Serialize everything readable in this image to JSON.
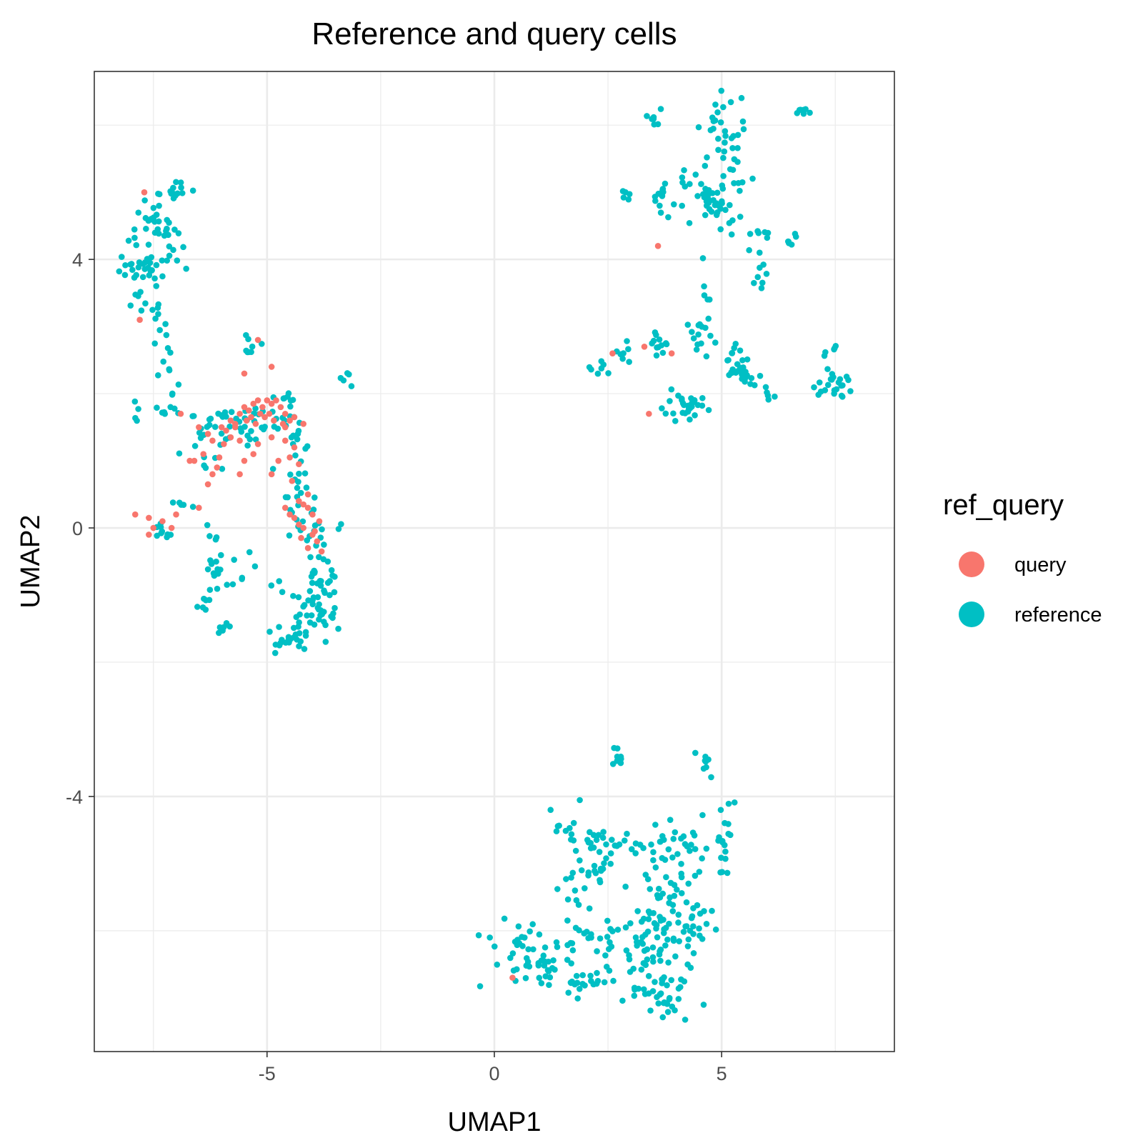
{
  "chart_data": {
    "type": "scatter",
    "title": "Reference and query cells",
    "xlabel": "UMAP1",
    "ylabel": "UMAP2",
    "xlim": [
      -8.8,
      8.8
    ],
    "ylim": [
      -7.8,
      6.8
    ],
    "x_major_ticks": [
      -5,
      0,
      5
    ],
    "x_minor_ticks": [
      -7.5,
      -2.5,
      2.5,
      7.5
    ],
    "y_major_ticks": [
      -4,
      0,
      4
    ],
    "y_minor_ticks": [
      -6,
      -2,
      2,
      6
    ],
    "x_tick_labels": [
      "-5",
      "0",
      "5"
    ],
    "y_tick_labels": [
      "-4",
      "0",
      "4"
    ],
    "grid": true,
    "legend": {
      "title": "ref_query",
      "position": "right",
      "entries": [
        {
          "label": "query",
          "color": "#F8766D"
        },
        {
          "label": "reference",
          "color": "#00BFC4"
        }
      ]
    },
    "series": [
      {
        "name": "query",
        "color": "#F8766D",
        "points": [
          [
            -7.7,
            5.0
          ],
          [
            -7.8,
            3.1
          ],
          [
            -7.9,
            0.2
          ],
          [
            -7.6,
            0.15
          ],
          [
            -7.5,
            0.0
          ],
          [
            -7.6,
            -0.1
          ],
          [
            -6.9,
            1.7
          ],
          [
            -6.5,
            1.5
          ],
          [
            -6.3,
            1.4
          ],
          [
            -6.2,
            1.3
          ],
          [
            -6.0,
            1.5
          ],
          [
            -5.8,
            1.6
          ],
          [
            -5.6,
            1.7
          ],
          [
            -5.5,
            1.8
          ],
          [
            -5.4,
            1.75
          ],
          [
            -5.3,
            1.85
          ],
          [
            -5.2,
            1.9
          ],
          [
            -5.1,
            1.8
          ],
          [
            -5.0,
            1.9
          ],
          [
            -4.9,
            1.85
          ],
          [
            -4.8,
            1.9
          ],
          [
            -4.7,
            1.8
          ],
          [
            -4.6,
            1.7
          ],
          [
            -4.5,
            1.6
          ],
          [
            -5.9,
            1.45
          ],
          [
            -5.7,
            1.5
          ],
          [
            -5.45,
            1.6
          ],
          [
            -5.25,
            1.55
          ],
          [
            -5.05,
            1.65
          ],
          [
            -4.85,
            1.6
          ],
          [
            -5.6,
            1.3
          ],
          [
            -5.2,
            1.25
          ],
          [
            -4.9,
            1.35
          ],
          [
            -4.6,
            1.3
          ],
          [
            -4.4,
            1.2
          ],
          [
            -5.7,
            1.55
          ],
          [
            -6.4,
            1.1
          ],
          [
            -6.6,
            1.0
          ],
          [
            -6.1,
            0.9
          ],
          [
            -6.2,
            0.8
          ],
          [
            -5.5,
            1.0
          ],
          [
            -5.3,
            1.1
          ],
          [
            -4.75,
            1.0
          ],
          [
            -4.5,
            1.05
          ],
          [
            -4.3,
            0.95
          ],
          [
            -6.3,
            0.65
          ],
          [
            -5.6,
            0.8
          ],
          [
            -4.9,
            0.8
          ],
          [
            -4.3,
            0.4
          ],
          [
            -4.2,
            0.35
          ],
          [
            -4.1,
            0.3
          ],
          [
            -4.0,
            0.2
          ],
          [
            -4.4,
            0.15
          ],
          [
            -4.3,
            0.05
          ],
          [
            -4.0,
            -0.1
          ],
          [
            -3.9,
            -0.2
          ],
          [
            -4.1,
            -0.3
          ],
          [
            -3.8,
            -0.35
          ],
          [
            -4.2,
            0.0
          ],
          [
            -3.85,
            0.1
          ],
          [
            -4.6,
            0.3
          ],
          [
            -4.5,
            0.2
          ],
          [
            -5.2,
            2.8
          ],
          [
            -4.9,
            2.4
          ],
          [
            -5.5,
            2.3
          ],
          [
            -4.6,
            1.5
          ],
          [
            -4.4,
            1.65
          ],
          [
            -4.2,
            1.55
          ],
          [
            -6.5,
            0.3
          ],
          [
            -7.0,
            0.2
          ],
          [
            -7.3,
            0.1
          ],
          [
            -7.1,
            0.0
          ],
          [
            3.3,
            2.7
          ],
          [
            3.9,
            2.6
          ],
          [
            2.6,
            2.6
          ],
          [
            3.4,
            1.7
          ],
          [
            3.6,
            4.2
          ],
          [
            0.4,
            -6.7
          ],
          [
            -6.7,
            1.0
          ],
          [
            -4.95,
            1.7
          ],
          [
            -5.15,
            1.7
          ],
          [
            -5.35,
            1.65
          ],
          [
            -4.65,
            1.55
          ],
          [
            -5.8,
            1.35
          ],
          [
            -5.95,
            1.25
          ],
          [
            -6.05,
            1.05
          ],
          [
            -4.45,
            0.7
          ],
          [
            -4.1,
            0.5
          ],
          [
            -3.95,
            -0.05
          ],
          [
            -4.25,
            -0.15
          ]
        ]
      },
      {
        "name": "reference",
        "color": "#00BFC4",
        "clusters": [
          {
            "cx": -7.6,
            "cy": 4.55,
            "sx": 0.18,
            "sy": 0.2,
            "n": 18
          },
          {
            "cx": -7.3,
            "cy": 4.25,
            "sx": 0.2,
            "sy": 0.2,
            "n": 16
          },
          {
            "cx": -7.8,
            "cy": 3.7,
            "sx": 0.2,
            "sy": 0.25,
            "n": 26
          },
          {
            "cx": -7.4,
            "cy": 3.5,
            "sx": 0.15,
            "sy": 0.35,
            "n": 14
          },
          {
            "cx": -6.9,
            "cy": 5.05,
            "sx": 0.2,
            "sy": 0.1,
            "n": 14
          },
          {
            "cx": -7.2,
            "cy": 2.5,
            "sx": 0.15,
            "sy": 0.5,
            "n": 12
          },
          {
            "cx": -7.0,
            "cy": 1.8,
            "sx": 0.2,
            "sy": 0.1,
            "n": 8
          },
          {
            "cx": -7.9,
            "cy": 1.7,
            "sx": 0.05,
            "sy": 0.08,
            "n": 4
          },
          {
            "cx": -5.3,
            "cy": 2.7,
            "sx": 0.12,
            "sy": 0.1,
            "n": 8
          },
          {
            "cx": -3.2,
            "cy": 2.2,
            "sx": 0.08,
            "sy": 0.05,
            "n": 5
          },
          {
            "cx": -5.8,
            "cy": 1.55,
            "sx": 0.35,
            "sy": 0.12,
            "n": 22
          },
          {
            "cx": -5.0,
            "cy": 1.6,
            "sx": 0.35,
            "sy": 0.15,
            "n": 24
          },
          {
            "cx": -4.5,
            "cy": 1.4,
            "sx": 0.2,
            "sy": 0.25,
            "n": 14
          },
          {
            "cx": -6.4,
            "cy": 1.2,
            "sx": 0.2,
            "sy": 0.25,
            "n": 14
          },
          {
            "cx": -4.4,
            "cy": 0.8,
            "sx": 0.15,
            "sy": 0.3,
            "n": 14
          },
          {
            "cx": -4.2,
            "cy": 0.2,
            "sx": 0.2,
            "sy": 0.25,
            "n": 18
          },
          {
            "cx": -3.8,
            "cy": -0.4,
            "sx": 0.15,
            "sy": 0.3,
            "n": 20
          },
          {
            "cx": -3.7,
            "cy": -1.0,
            "sx": 0.15,
            "sy": 0.3,
            "n": 22
          },
          {
            "cx": -4.2,
            "cy": -1.3,
            "sx": 0.25,
            "sy": 0.25,
            "n": 28
          },
          {
            "cx": -4.4,
            "cy": -1.7,
            "sx": 0.25,
            "sy": 0.1,
            "n": 18
          },
          {
            "cx": -6.2,
            "cy": -0.5,
            "sx": 0.12,
            "sy": 0.3,
            "n": 14
          },
          {
            "cx": -6.3,
            "cy": -1.0,
            "sx": 0.15,
            "sy": 0.1,
            "n": 8
          },
          {
            "cx": -5.5,
            "cy": -0.7,
            "sx": 0.3,
            "sy": 0.15,
            "n": 9
          },
          {
            "cx": -6.0,
            "cy": -1.45,
            "sx": 0.08,
            "sy": 0.08,
            "n": 6
          },
          {
            "cx": -7.3,
            "cy": 0.0,
            "sx": 0.12,
            "sy": 0.1,
            "n": 10
          },
          {
            "cx": -6.9,
            "cy": 0.35,
            "sx": 0.15,
            "sy": 0.08,
            "n": 5
          },
          {
            "cx": 3.6,
            "cy": 6.1,
            "sx": 0.08,
            "sy": 0.1,
            "n": 7
          },
          {
            "cx": 5.0,
            "cy": 6.0,
            "sx": 0.2,
            "sy": 0.2,
            "n": 22
          },
          {
            "cx": 5.2,
            "cy": 5.5,
            "sx": 0.2,
            "sy": 0.3,
            "n": 18
          },
          {
            "cx": 6.8,
            "cy": 6.2,
            "sx": 0.12,
            "sy": 0.05,
            "n": 8
          },
          {
            "cx": 4.6,
            "cy": 5.0,
            "sx": 0.3,
            "sy": 0.2,
            "n": 24
          },
          {
            "cx": 3.8,
            "cy": 4.9,
            "sx": 0.3,
            "sy": 0.15,
            "n": 16
          },
          {
            "cx": 5.0,
            "cy": 4.7,
            "sx": 0.25,
            "sy": 0.15,
            "n": 18
          },
          {
            "cx": 2.9,
            "cy": 5.0,
            "sx": 0.1,
            "sy": 0.05,
            "n": 5
          },
          {
            "cx": 5.8,
            "cy": 4.3,
            "sx": 0.15,
            "sy": 0.1,
            "n": 8
          },
          {
            "cx": 6.5,
            "cy": 4.3,
            "sx": 0.12,
            "sy": 0.05,
            "n": 6
          },
          {
            "cx": 5.9,
            "cy": 3.8,
            "sx": 0.1,
            "sy": 0.1,
            "n": 7
          },
          {
            "cx": 4.4,
            "cy": 2.9,
            "sx": 0.15,
            "sy": 0.15,
            "n": 12
          },
          {
            "cx": 3.6,
            "cy": 2.7,
            "sx": 0.25,
            "sy": 0.1,
            "n": 12
          },
          {
            "cx": 2.8,
            "cy": 2.6,
            "sx": 0.1,
            "sy": 0.1,
            "n": 7
          },
          {
            "cx": 2.3,
            "cy": 2.45,
            "sx": 0.1,
            "sy": 0.08,
            "n": 7
          },
          {
            "cx": 5.4,
            "cy": 2.3,
            "sx": 0.2,
            "sy": 0.1,
            "n": 22
          },
          {
            "cx": 5.3,
            "cy": 2.55,
            "sx": 0.1,
            "sy": 0.12,
            "n": 10
          },
          {
            "cx": 6.1,
            "cy": 2.0,
            "sx": 0.1,
            "sy": 0.05,
            "n": 5
          },
          {
            "cx": 7.5,
            "cy": 2.1,
            "sx": 0.25,
            "sy": 0.1,
            "n": 22
          },
          {
            "cx": 7.3,
            "cy": 2.6,
            "sx": 0.1,
            "sy": 0.12,
            "n": 6
          },
          {
            "cx": 4.2,
            "cy": 1.8,
            "sx": 0.25,
            "sy": 0.1,
            "n": 30
          },
          {
            "cx": 4.7,
            "cy": 3.4,
            "sx": 0.15,
            "sy": 0.3,
            "n": 8
          },
          {
            "cx": 2.7,
            "cy": -3.45,
            "sx": 0.05,
            "sy": 0.1,
            "n": 8
          },
          {
            "cx": 4.6,
            "cy": -3.5,
            "sx": 0.1,
            "sy": 0.1,
            "n": 8
          },
          {
            "cx": 5.1,
            "cy": -4.6,
            "sx": 0.1,
            "sy": 0.3,
            "n": 18
          },
          {
            "cx": 1.6,
            "cy": -4.6,
            "sx": 0.2,
            "sy": 0.25,
            "n": 14
          },
          {
            "cx": 2.5,
            "cy": -4.7,
            "sx": 0.3,
            "sy": 0.1,
            "n": 22
          },
          {
            "cx": 3.7,
            "cy": -4.8,
            "sx": 0.3,
            "sy": 0.25,
            "n": 22
          },
          {
            "cx": 4.4,
            "cy": -4.9,
            "sx": 0.25,
            "sy": 0.35,
            "n": 16
          },
          {
            "cx": 1.8,
            "cy": -5.4,
            "sx": 0.2,
            "sy": 0.3,
            "n": 18
          },
          {
            "cx": 2.3,
            "cy": -5.0,
            "sx": 0.15,
            "sy": 0.3,
            "n": 10
          },
          {
            "cx": 3.6,
            "cy": -5.6,
            "sx": 0.25,
            "sy": 0.25,
            "n": 24
          },
          {
            "cx": 4.1,
            "cy": -5.9,
            "sx": 0.35,
            "sy": 0.2,
            "n": 30
          },
          {
            "cx": 3.3,
            "cy": -6.2,
            "sx": 0.3,
            "sy": 0.25,
            "n": 28
          },
          {
            "cx": 2.5,
            "cy": -6.3,
            "sx": 0.3,
            "sy": 0.25,
            "n": 22
          },
          {
            "cx": 3.8,
            "cy": -6.5,
            "sx": 0.3,
            "sy": 0.25,
            "n": 22
          },
          {
            "cx": 1.5,
            "cy": -6.5,
            "sx": 0.3,
            "sy": 0.2,
            "n": 18
          },
          {
            "cx": 0.6,
            "cy": -6.3,
            "sx": 0.35,
            "sy": 0.25,
            "n": 30
          },
          {
            "cx": 2.0,
            "cy": -6.8,
            "sx": 0.25,
            "sy": 0.1,
            "n": 16
          },
          {
            "cx": 3.9,
            "cy": -7.0,
            "sx": 0.25,
            "sy": 0.15,
            "n": 20
          },
          {
            "cx": 3.2,
            "cy": -6.9,
            "sx": 0.2,
            "sy": 0.1,
            "n": 10
          },
          {
            "cx": 1.0,
            "cy": -6.6,
            "sx": 0.2,
            "sy": 0.1,
            "n": 10
          }
        ]
      }
    ]
  }
}
